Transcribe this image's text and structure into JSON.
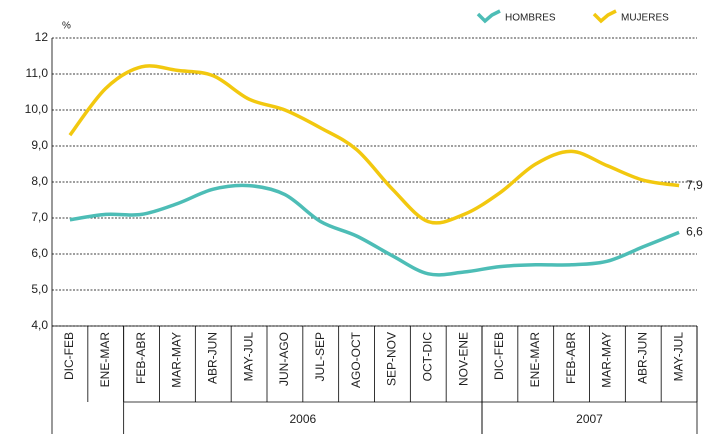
{
  "chart_data": {
    "type": "line",
    "y_axis_label": "%",
    "categories": [
      "DIC-FEB",
      "ENE-MAR",
      "FEB-ABR",
      "MAR-MAY",
      "ABR-JUN",
      "MAY-JUL",
      "JUN-AGO",
      "JUL-SEP",
      "AGO-OCT",
      "SEP-NOV",
      "OCT-DIC",
      "NOV-ENE",
      "DIC-FEB",
      "ENE-MAR",
      "FEB-ABR",
      "MAR-MAY",
      "ABR-JUN",
      "MAY-JUL"
    ],
    "year_groups": [
      {
        "label": "2006",
        "first": 2,
        "last": 11
      },
      {
        "label": "2007",
        "first": 12,
        "last": 17
      }
    ],
    "series": [
      {
        "name": "HOMBRES",
        "color": "#4dbdb6",
        "values": [
          6.95,
          7.1,
          7.1,
          7.4,
          7.8,
          7.9,
          7.65,
          6.9,
          6.5,
          5.95,
          5.45,
          5.5,
          5.65,
          5.7,
          5.7,
          5.8,
          6.2,
          6.6
        ],
        "value_labels": [
          null,
          null,
          null,
          null,
          null,
          null,
          null,
          null,
          null,
          null,
          null,
          null,
          null,
          null,
          null,
          null,
          null,
          "6,6"
        ]
      },
      {
        "name": "MUJERES",
        "color": "#f2c80f",
        "values": [
          9.3,
          10.6,
          11.2,
          11.1,
          10.95,
          10.3,
          10.0,
          9.5,
          8.9,
          7.8,
          6.9,
          7.1,
          7.7,
          8.5,
          8.85,
          8.45,
          8.05,
          7.9
        ],
        "value_labels": [
          null,
          null,
          null,
          null,
          null,
          null,
          null,
          null,
          null,
          null,
          null,
          null,
          null,
          null,
          null,
          null,
          null,
          "7,9"
        ]
      }
    ],
    "ylim": [
      4,
      12
    ],
    "yticks": [
      {
        "value": 4,
        "label": "4,0"
      },
      {
        "value": 5,
        "label": "5,0"
      },
      {
        "value": 6,
        "label": "6,0"
      },
      {
        "value": 7,
        "label": "7,0"
      },
      {
        "value": 8,
        "label": "8,0"
      },
      {
        "value": 9,
        "label": "9,0"
      },
      {
        "value": 10,
        "label": "10,0"
      },
      {
        "value": 11,
        "label": "11,0"
      },
      12
    ],
    "grid": true,
    "legend": "top-right"
  }
}
